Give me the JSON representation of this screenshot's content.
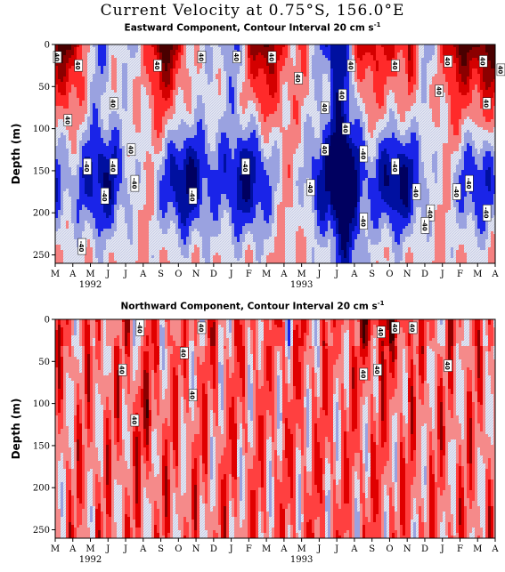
{
  "title": "Current Velocity at 0.75°S, 156.0°E",
  "chart_data": [
    {
      "type": "heatmap",
      "subtitle_text": "Eastward Component, Contour Interval 20 cm s",
      "subtitle_unit_exp": "-1",
      "ylabel": "Depth (m)",
      "y_ticks": [
        "0",
        "50",
        "100",
        "150",
        "200",
        "250"
      ],
      "ylim": [
        0,
        260
      ],
      "x_ticks": [
        "M",
        "A",
        "M",
        "J",
        "J",
        "A",
        "S",
        "O",
        "N",
        "D",
        "J",
        "F",
        "M",
        "A",
        "M",
        "J",
        "J",
        "A",
        "S",
        "O",
        "N",
        "D",
        "J",
        "F",
        "M",
        "A"
      ],
      "year_labels": [
        {
          "label": "1992",
          "tick_index": 2
        },
        {
          "label": "1993",
          "tick_index": 14
        }
      ],
      "contour_labels": [
        {
          "text": "40",
          "month": 0.1,
          "depth": 15
        },
        {
          "text": "40",
          "month": 1.3,
          "depth": 25
        },
        {
          "text": "40",
          "month": 0.7,
          "depth": 90
        },
        {
          "text": "40",
          "month": 3.3,
          "depth": 70
        },
        {
          "text": "40",
          "month": 4.3,
          "depth": 125
        },
        {
          "text": "40",
          "month": 5.8,
          "depth": 25
        },
        {
          "text": "40",
          "month": 8.3,
          "depth": 15
        },
        {
          "text": "40",
          "month": 10.3,
          "depth": 15
        },
        {
          "text": "40",
          "month": 12.3,
          "depth": 15
        },
        {
          "text": "40",
          "month": 13.8,
          "depth": 40
        },
        {
          "text": "40",
          "month": 15.3,
          "depth": 75
        },
        {
          "text": "40",
          "month": 15.3,
          "depth": 125
        },
        {
          "text": "40",
          "month": 16.8,
          "depth": 25
        },
        {
          "text": "40",
          "month": 16.3,
          "depth": 60
        },
        {
          "text": "40",
          "month": 16.5,
          "depth": 100
        },
        {
          "text": "40",
          "month": 19.3,
          "depth": 25
        },
        {
          "text": "40",
          "month": 21.8,
          "depth": 55
        },
        {
          "text": "40",
          "month": 22.3,
          "depth": 20
        },
        {
          "text": "40",
          "month": 24.3,
          "depth": 20
        },
        {
          "text": "40",
          "month": 24.5,
          "depth": 70
        },
        {
          "text": "40",
          "month": 25.3,
          "depth": 30
        },
        {
          "text": "-40",
          "month": 1.8,
          "depth": 145
        },
        {
          "text": "-40",
          "month": 3.3,
          "depth": 145
        },
        {
          "text": "-40",
          "month": 2.8,
          "depth": 180
        },
        {
          "text": "-40",
          "month": 4.5,
          "depth": 165
        },
        {
          "text": "-40",
          "month": 1.5,
          "depth": 240
        },
        {
          "text": "-40",
          "month": 7.8,
          "depth": 180
        },
        {
          "text": "-40",
          "month": 10.8,
          "depth": 145
        },
        {
          "text": "-40",
          "month": 14.5,
          "depth": 170
        },
        {
          "text": "-40",
          "month": 17.5,
          "depth": 130
        },
        {
          "text": "-40",
          "month": 17.5,
          "depth": 210
        },
        {
          "text": "-40",
          "month": 19.3,
          "depth": 145
        },
        {
          "text": "-40",
          "month": 20.5,
          "depth": 175
        },
        {
          "text": "-40",
          "month": 21.3,
          "depth": 200
        },
        {
          "text": "-40",
          "month": 21.0,
          "depth": 215
        },
        {
          "text": "-40",
          "month": 22.8,
          "depth": 175
        },
        {
          "text": "-40",
          "month": 23.5,
          "depth": 165
        },
        {
          "text": "-40",
          "month": 24.5,
          "depth": 200
        }
      ]
    },
    {
      "type": "heatmap",
      "subtitle_text": "Northward Component, Contour Interval 20 cm s",
      "subtitle_unit_exp": "-1",
      "ylabel": "Depth (m)",
      "y_ticks": [
        "0",
        "50",
        "100",
        "150",
        "200",
        "250"
      ],
      "ylim": [
        0,
        260
      ],
      "x_ticks": [
        "M",
        "A",
        "M",
        "J",
        "J",
        "A",
        "S",
        "O",
        "N",
        "D",
        "J",
        "F",
        "M",
        "A",
        "M",
        "J",
        "J",
        "A",
        "S",
        "O",
        "N",
        "D",
        "J",
        "F",
        "M",
        "A"
      ],
      "year_labels": [
        {
          "label": "1992",
          "tick_index": 2
        },
        {
          "label": "1993",
          "tick_index": 14
        }
      ],
      "contour_labels": [
        {
          "text": "40",
          "month": 4.5,
          "depth": 120
        },
        {
          "text": "40",
          "month": 7.3,
          "depth": 40
        },
        {
          "text": "40",
          "month": 8.3,
          "depth": 10
        },
        {
          "text": "40",
          "month": 18.5,
          "depth": 15
        },
        {
          "text": "40",
          "month": 19.3,
          "depth": 10
        },
        {
          "text": "40",
          "month": 20.3,
          "depth": 10
        },
        {
          "text": "40",
          "month": 17.5,
          "depth": 65
        },
        {
          "text": "40",
          "month": 18.3,
          "depth": 60
        },
        {
          "text": "40",
          "month": 3.8,
          "depth": 60
        },
        {
          "text": "40",
          "month": 7.8,
          "depth": 90
        },
        {
          "text": "40",
          "month": 22.3,
          "depth": 55
        },
        {
          "text": "-40",
          "month": 4.8,
          "depth": 10
        }
      ]
    }
  ]
}
